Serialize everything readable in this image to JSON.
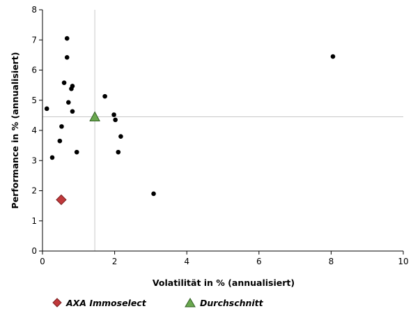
{
  "chart_data": {
    "type": "scatter",
    "xlabel": "Volatilität in % (annualisiert)",
    "ylabel": "Performance in % (annualisiert)",
    "xlim": [
      0,
      10
    ],
    "ylim": [
      0,
      8
    ],
    "x_ticks": [
      0,
      2,
      4,
      6,
      8,
      10
    ],
    "y_ticks": [
      0,
      1,
      2,
      3,
      4,
      5,
      6,
      7,
      8
    ],
    "grid": false,
    "legend_position": "bottom-left",
    "reference_lines": {
      "x": 1.45,
      "y": 4.45
    },
    "series": [
      {
        "name": "",
        "marker": "circle",
        "color": "#000000",
        "points": [
          {
            "x": 0.12,
            "y": 4.72
          },
          {
            "x": 0.27,
            "y": 3.1
          },
          {
            "x": 0.48,
            "y": 3.65
          },
          {
            "x": 0.53,
            "y": 4.13
          },
          {
            "x": 0.6,
            "y": 5.58
          },
          {
            "x": 0.68,
            "y": 7.05
          },
          {
            "x": 0.68,
            "y": 6.42
          },
          {
            "x": 0.72,
            "y": 4.93
          },
          {
            "x": 0.8,
            "y": 5.38
          },
          {
            "x": 0.83,
            "y": 5.47
          },
          {
            "x": 0.83,
            "y": 4.63
          },
          {
            "x": 0.95,
            "y": 3.28
          },
          {
            "x": 1.73,
            "y": 5.13
          },
          {
            "x": 1.98,
            "y": 4.52
          },
          {
            "x": 2.02,
            "y": 4.35
          },
          {
            "x": 2.1,
            "y": 3.28
          },
          {
            "x": 2.17,
            "y": 3.8
          },
          {
            "x": 3.08,
            "y": 1.9
          },
          {
            "x": 8.05,
            "y": 6.45
          }
        ]
      },
      {
        "name": "AXA Immoselect",
        "marker": "diamond",
        "color": "#c0393b",
        "points": [
          {
            "x": 0.52,
            "y": 1.7
          }
        ]
      },
      {
        "name": "Durchschnitt",
        "marker": "triangle",
        "color": "#6aa84f",
        "points": [
          {
            "x": 1.45,
            "y": 4.45
          }
        ]
      }
    ]
  },
  "legend": {
    "items": [
      {
        "label": "AXA Immoselect",
        "icon": "diamond-icon",
        "color": "#c0393b"
      },
      {
        "label": "Durchschnitt",
        "icon": "triangle-icon",
        "color": "#6aa84f"
      }
    ]
  }
}
